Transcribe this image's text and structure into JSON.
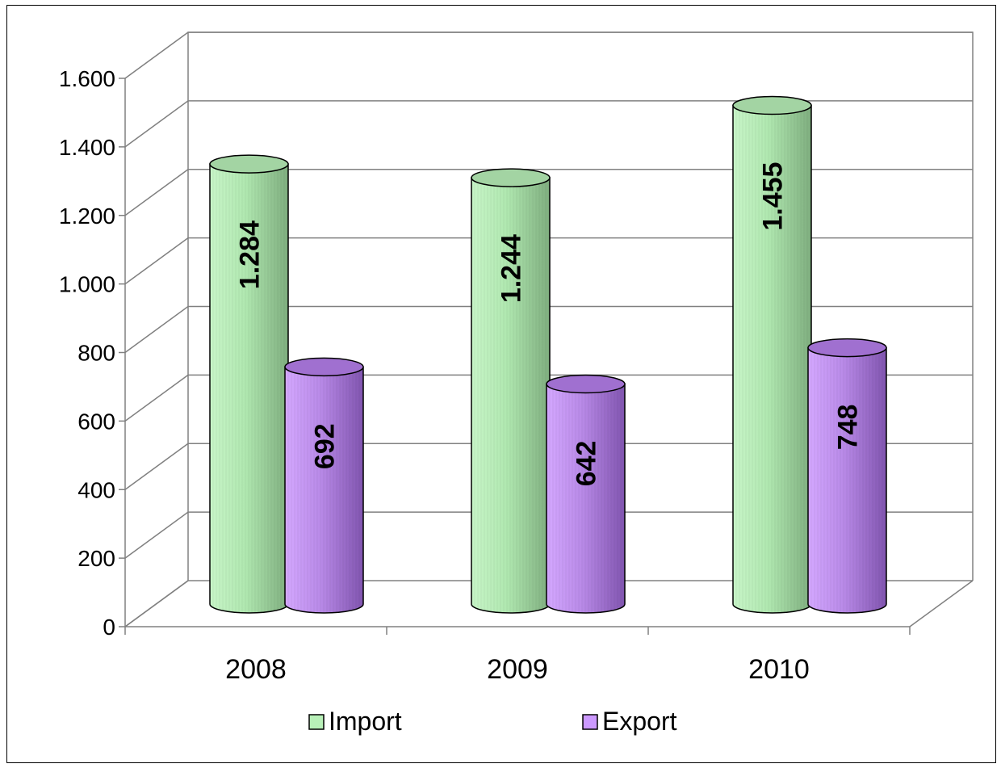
{
  "chart_data": {
    "type": "bar",
    "style": "3d-cylinder",
    "categories": [
      "2008",
      "2009",
      "2010"
    ],
    "series": [
      {
        "name": "Import",
        "values": [
          1284,
          1244,
          1455
        ],
        "labels": [
          "1.284",
          "1.244",
          "1.455"
        ],
        "color": "#b8f0b8",
        "shade": "#8fbf8f"
      },
      {
        "name": "Export",
        "values": [
          692,
          642,
          748
        ],
        "labels": [
          "692",
          "642",
          "748"
        ],
        "color": "#cc99ff",
        "shade": "#9966cc"
      }
    ],
    "ylim": [
      0,
      1600
    ],
    "yticks": [
      0,
      200,
      400,
      600,
      800,
      1000,
      1200,
      1400,
      1600
    ],
    "ytick_labels": [
      "0",
      "200",
      "400",
      "600",
      "800",
      "1.000",
      "1.200",
      "1.400",
      "1.600"
    ],
    "grid": true,
    "legend_position": "bottom"
  }
}
